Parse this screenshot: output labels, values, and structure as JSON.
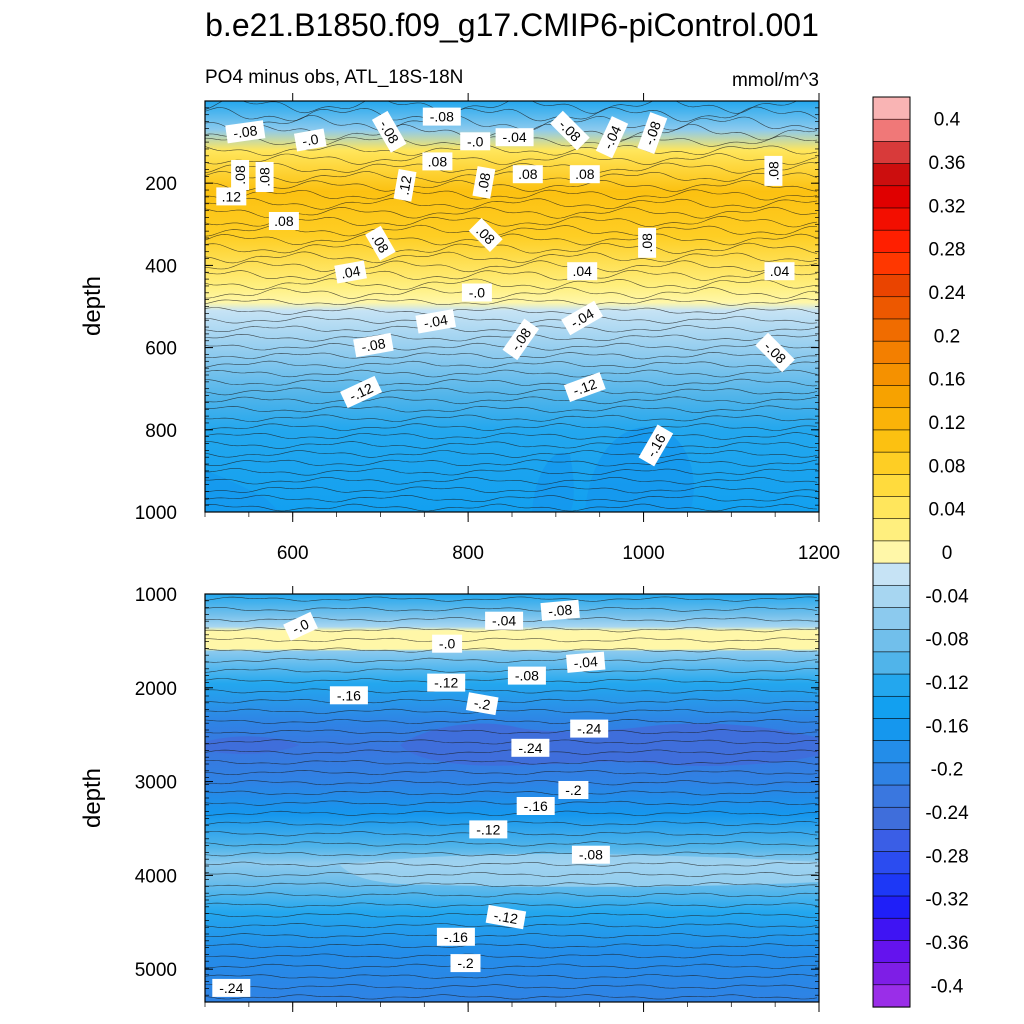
{
  "title": "b.e21.B1850.f09_g17.CMIP6-piControl.001",
  "subtitle_left": "PO4 minus obs, ATL_18S-18N",
  "units": "mmol/m^3",
  "colors": {
    "negative": [
      "#c6e3f5",
      "#a7d6f1",
      "#8ccaee",
      "#71bfeb",
      "#50b4ea",
      "#23a7ee",
      "#12a0f0",
      "#1597ee",
      "#238de9",
      "#2f82e4",
      "#3a77df",
      "#3f6edb",
      "#3a5ee6",
      "#2b4cf0",
      "#1d38f6",
      "#1f1ff8",
      "#3f14f3",
      "#6413ee",
      "#7e1ee6",
      "#9a2ee8"
    ],
    "positive": [
      "#fff7a8",
      "#ffef7e",
      "#ffe65c",
      "#ffdb3d",
      "#fece24",
      "#fcc111",
      "#fab308",
      "#f7a200",
      "#f59100",
      "#f37f00",
      "#f06c00",
      "#ed5800",
      "#ea4400",
      "#ff3700",
      "#ff1f00",
      "#f30e00",
      "#e00000",
      "#cc0e0e",
      "#d83a3a",
      "#f07878",
      "#f9b4b4"
    ]
  },
  "chart_data": [
    {
      "type": "contour",
      "panel": "upper",
      "xlabel": "",
      "ylabel": "depth",
      "xlim": [
        500,
        1200
      ],
      "ylim": [
        1000,
        0
      ],
      "xticks": [
        "600",
        "800",
        "1000",
        "1200"
      ],
      "yticks": [
        "200",
        "400",
        "600",
        "800",
        "1000"
      ],
      "contour_labels": [
        {
          "text": "-.08",
          "x": 546,
          "y": 75,
          "rot": -8
        },
        {
          "text": "-.0",
          "x": 620,
          "y": 95,
          "rot": -10
        },
        {
          "text": "-.08",
          "x": 710,
          "y": 75,
          "rot": 60
        },
        {
          "text": "-.08",
          "x": 770,
          "y": 38,
          "rot": 0
        },
        {
          "text": "-.0",
          "x": 808,
          "y": 98,
          "rot": 0
        },
        {
          "text": "-.04",
          "x": 853,
          "y": 88,
          "rot": 0
        },
        {
          "text": "-.08",
          "x": 916,
          "y": 72,
          "rot": 45
        },
        {
          "text": "-.04",
          "x": 964,
          "y": 88,
          "rot": -65
        },
        {
          "text": "-.08",
          "x": 1010,
          "y": 78,
          "rot": -70
        },
        {
          "text": ".08",
          "x": 540,
          "y": 180,
          "rot": 270
        },
        {
          "text": ".08",
          "x": 568,
          "y": 185,
          "rot": 270
        },
        {
          "text": ".12",
          "x": 530,
          "y": 232,
          "rot": 0
        },
        {
          "text": ".08",
          "x": 765,
          "y": 147,
          "rot": 0
        },
        {
          "text": ".12",
          "x": 728,
          "y": 205,
          "rot": -80
        },
        {
          "text": ".08",
          "x": 818,
          "y": 198,
          "rot": -80
        },
        {
          "text": ".08",
          "x": 868,
          "y": 178,
          "rot": 0
        },
        {
          "text": ".08",
          "x": 933,
          "y": 178,
          "rot": 0
        },
        {
          "text": ".08",
          "x": 1148,
          "y": 170,
          "rot": 270
        },
        {
          "text": ".08",
          "x": 590,
          "y": 292,
          "rot": 0
        },
        {
          "text": ".08",
          "x": 700,
          "y": 346,
          "rot": 60
        },
        {
          "text": ".08",
          "x": 820,
          "y": 326,
          "rot": 45
        },
        {
          "text": ".08",
          "x": 1004,
          "y": 345,
          "rot": 270
        },
        {
          "text": ".04",
          "x": 666,
          "y": 416,
          "rot": -10
        },
        {
          "text": ".04",
          "x": 930,
          "y": 414,
          "rot": 0
        },
        {
          "text": ".04",
          "x": 1155,
          "y": 414,
          "rot": 0
        },
        {
          "text": "-.0",
          "x": 810,
          "y": 466,
          "rot": 0
        },
        {
          "text": "-.04",
          "x": 763,
          "y": 536,
          "rot": -10
        },
        {
          "text": "-.04",
          "x": 930,
          "y": 528,
          "rot": -30
        },
        {
          "text": "-.08",
          "x": 692,
          "y": 594,
          "rot": -10
        },
        {
          "text": "-.08",
          "x": 860,
          "y": 580,
          "rot": -55
        },
        {
          "text": "-.08",
          "x": 1150,
          "y": 612,
          "rot": 45
        },
        {
          "text": "-.12",
          "x": 678,
          "y": 708,
          "rot": -25
        },
        {
          "text": "-.12",
          "x": 933,
          "y": 696,
          "rot": -20
        },
        {
          "text": "-.16",
          "x": 1014,
          "y": 838,
          "rot": -60
        }
      ]
    },
    {
      "type": "contour",
      "panel": "lower",
      "xlabel": "",
      "ylabel": "depth",
      "xlim": [
        500,
        1200
      ],
      "ylim": [
        5350,
        1000
      ],
      "xticks": [],
      "yticks": [
        "1000",
        "2000",
        "3000",
        "4000",
        "5000"
      ],
      "contour_labels": [
        {
          "text": "-.0",
          "x": 609,
          "y": 1345,
          "rot": -25
        },
        {
          "text": "-.04",
          "x": 841,
          "y": 1285,
          "rot": 0
        },
        {
          "text": "-.08",
          "x": 905,
          "y": 1175,
          "rot": -5
        },
        {
          "text": "-.0",
          "x": 776,
          "y": 1530,
          "rot": 0
        },
        {
          "text": "-.04",
          "x": 934,
          "y": 1727,
          "rot": -5
        },
        {
          "text": "-.08",
          "x": 867,
          "y": 1870,
          "rot": 0
        },
        {
          "text": "-.12",
          "x": 775,
          "y": 1945,
          "rot": 0
        },
        {
          "text": "-.16",
          "x": 664,
          "y": 2080,
          "rot": 0
        },
        {
          "text": "-.2",
          "x": 816,
          "y": 2170,
          "rot": 10
        },
        {
          "text": "-.24",
          "x": 938,
          "y": 2435,
          "rot": 0
        },
        {
          "text": "-.24",
          "x": 871,
          "y": 2640,
          "rot": 0
        },
        {
          "text": "-.2",
          "x": 920,
          "y": 3090,
          "rot": 0
        },
        {
          "text": "-.16",
          "x": 877,
          "y": 3260,
          "rot": 0
        },
        {
          "text": "-.12",
          "x": 823,
          "y": 3510,
          "rot": 0
        },
        {
          "text": "-.08",
          "x": 940,
          "y": 3780,
          "rot": 0
        },
        {
          "text": "-.12",
          "x": 843,
          "y": 4445,
          "rot": 10
        },
        {
          "text": "-.16",
          "x": 786,
          "y": 4655,
          "rot": 0
        },
        {
          "text": "-.2",
          "x": 797,
          "y": 4935,
          "rot": 0
        },
        {
          "text": "-.24",
          "x": 530,
          "y": 5200,
          "rot": 0
        }
      ]
    },
    {
      "type": "colorbar",
      "tick_labels": [
        "0.4",
        "0.36",
        "0.32",
        "0.28",
        "0.24",
        "0.2",
        "0.16",
        "0.12",
        "0.08",
        "0.04",
        "0",
        "-0.04",
        "-0.08",
        "-0.12",
        "-0.16",
        "-0.2",
        "-0.24",
        "-0.28",
        "-0.32",
        "-0.36",
        "-0.4"
      ],
      "range": [
        -0.42,
        0.42
      ]
    }
  ]
}
